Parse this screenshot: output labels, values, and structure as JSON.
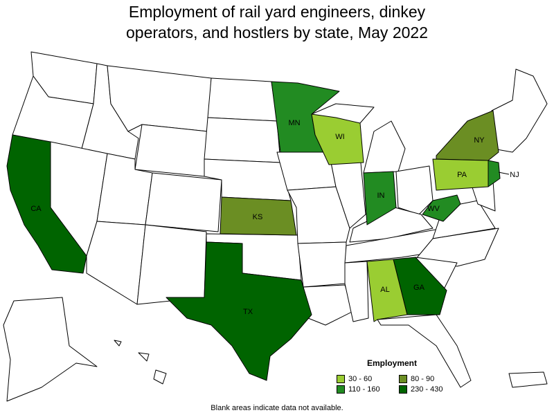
{
  "title_lines": [
    "Employment of rail yard engineers, dinkey",
    "operators, and hostlers by state, May 2022"
  ],
  "legend": {
    "title": "Employment",
    "items": [
      {
        "label": "30 - 60",
        "color": "#9acd32"
      },
      {
        "label": "80 - 90",
        "color": "#6b8e23"
      },
      {
        "label": "110 - 160",
        "color": "#228b22"
      },
      {
        "label": "230 - 430",
        "color": "#006400"
      }
    ]
  },
  "states": {
    "CA": {
      "label": "CA",
      "range": "230 - 430",
      "color": "#006400"
    },
    "TX": {
      "label": "TX",
      "range": "230 - 430",
      "color": "#006400"
    },
    "GA": {
      "label": "GA",
      "range": "230 - 430",
      "color": "#006400"
    },
    "MN": {
      "label": "MN",
      "range": "110 - 160",
      "color": "#228b22"
    },
    "IN": {
      "label": "IN",
      "range": "110 - 160",
      "color": "#228b22"
    },
    "WV": {
      "label": "WV",
      "range": "110 - 160",
      "color": "#228b22"
    },
    "NJ": {
      "label": "NJ",
      "range": "110 - 160",
      "color": "#228b22"
    },
    "KS": {
      "label": "KS",
      "range": "80 - 90",
      "color": "#6b8e23"
    },
    "NY": {
      "label": "NY",
      "range": "80 - 90",
      "color": "#6b8e23"
    },
    "WI": {
      "label": "WI",
      "range": "30 - 60",
      "color": "#9acd32"
    },
    "PA": {
      "label": "PA",
      "range": "30 - 60",
      "color": "#9acd32"
    },
    "AL": {
      "label": "AL",
      "range": "30 - 60",
      "color": "#9acd32"
    }
  },
  "blank_color": "#ffffff",
  "note": "Blank areas indicate data not available."
}
